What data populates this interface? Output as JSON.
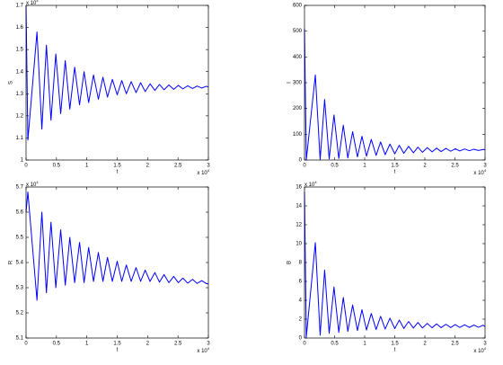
{
  "chart_data": [
    {
      "type": "line",
      "xlabel": "t",
      "ylabel": "S",
      "color": "#0000ff",
      "x_scale_label": {
        "base": "x 10",
        "exp": "4"
      },
      "y_scale_label": {
        "base": "x 10",
        "exp": "4"
      },
      "xlim": [
        0,
        3
      ],
      "xticks": [
        0,
        0.5,
        1,
        1.5,
        2,
        2.5,
        3
      ],
      "ylim": [
        1,
        1.7
      ],
      "yticks": [
        1,
        1.1,
        1.2,
        1.3,
        1.4,
        1.5,
        1.6,
        1.7
      ],
      "x": [
        0,
        0.03,
        0.18,
        0.26,
        0.335,
        0.41,
        0.49,
        0.57,
        0.645,
        0.72,
        0.8,
        0.88,
        0.955,
        1.03,
        1.11,
        1.19,
        1.265,
        1.34,
        1.42,
        1.5,
        1.575,
        1.65,
        1.73,
        1.81,
        1.885,
        1.96,
        2.04,
        2.12,
        2.195,
        2.27,
        2.35,
        2.43,
        2.505,
        2.58,
        2.66,
        2.74,
        2.815,
        2.89,
        2.97,
        3.0
      ],
      "values": [
        1.7,
        1.09,
        1.58,
        1.14,
        1.52,
        1.18,
        1.48,
        1.21,
        1.45,
        1.23,
        1.42,
        1.25,
        1.4,
        1.26,
        1.385,
        1.275,
        1.375,
        1.285,
        1.365,
        1.295,
        1.36,
        1.3,
        1.355,
        1.305,
        1.35,
        1.31,
        1.345,
        1.315,
        1.342,
        1.318,
        1.34,
        1.32,
        1.338,
        1.322,
        1.336,
        1.324,
        1.335,
        1.326,
        1.334,
        1.33
      ]
    },
    {
      "type": "line",
      "xlabel": "t",
      "ylabel": "I",
      "color": "#0000ff",
      "x_scale_label": {
        "base": "x 10",
        "exp": "4"
      },
      "xlim": [
        0,
        3
      ],
      "xticks": [
        0,
        0.5,
        1,
        1.5,
        2,
        2.5,
        3
      ],
      "ylim": [
        0,
        600
      ],
      "yticks": [
        0,
        100,
        200,
        300,
        400,
        500,
        600
      ],
      "x": [
        0,
        0.03,
        0.18,
        0.26,
        0.335,
        0.41,
        0.49,
        0.57,
        0.645,
        0.72,
        0.8,
        0.88,
        0.955,
        1.03,
        1.11,
        1.19,
        1.265,
        1.34,
        1.42,
        1.5,
        1.575,
        1.65,
        1.73,
        1.81,
        1.885,
        1.96,
        2.04,
        2.12,
        2.195,
        2.27,
        2.35,
        2.43,
        2.505,
        2.58,
        2.66,
        2.74,
        2.815,
        2.89,
        2.97,
        3.0
      ],
      "values": [
        510,
        0,
        330,
        2,
        235,
        4,
        175,
        6,
        135,
        8,
        110,
        12,
        92,
        15,
        80,
        18,
        70,
        21,
        62,
        24,
        57,
        26,
        53,
        28,
        50,
        30,
        48,
        32,
        46,
        33,
        45,
        34,
        44,
        35,
        43,
        36,
        42,
        37,
        41,
        40
      ]
    },
    {
      "type": "line",
      "xlabel": "t",
      "ylabel": "R",
      "color": "#0000ff",
      "x_scale_label": {
        "base": "x 10",
        "exp": "4"
      },
      "y_scale_label": {
        "base": "x 10",
        "exp": "4"
      },
      "xlim": [
        0,
        3
      ],
      "xticks": [
        0,
        0.5,
        1,
        1.5,
        2,
        2.5,
        3
      ],
      "ylim": [
        5.1,
        5.7
      ],
      "yticks": [
        5.1,
        5.2,
        5.3,
        5.4,
        5.5,
        5.6,
        5.7
      ],
      "x": [
        0,
        0.03,
        0.18,
        0.26,
        0.335,
        0.41,
        0.49,
        0.57,
        0.645,
        0.72,
        0.8,
        0.88,
        0.955,
        1.03,
        1.11,
        1.19,
        1.265,
        1.34,
        1.42,
        1.5,
        1.575,
        1.65,
        1.73,
        1.81,
        1.885,
        1.96,
        2.04,
        2.12,
        2.195,
        2.27,
        2.35,
        2.43,
        2.505,
        2.58,
        2.66,
        2.74,
        2.815,
        2.89,
        2.97,
        3.0
      ],
      "values": [
        5.6,
        5.68,
        5.25,
        5.6,
        5.28,
        5.56,
        5.3,
        5.53,
        5.31,
        5.5,
        5.32,
        5.48,
        5.32,
        5.46,
        5.325,
        5.44,
        5.325,
        5.42,
        5.325,
        5.405,
        5.325,
        5.39,
        5.325,
        5.38,
        5.325,
        5.37,
        5.325,
        5.36,
        5.322,
        5.352,
        5.32,
        5.345,
        5.32,
        5.338,
        5.318,
        5.333,
        5.317,
        5.328,
        5.316,
        5.315
      ]
    },
    {
      "type": "line",
      "xlabel": "t",
      "ylabel": "B",
      "color": "#0000ff",
      "x_scale_label": {
        "base": "x 10",
        "exp": "4"
      },
      "y_scale_label": {
        "base": "x 10",
        "exp": "4"
      },
      "xlim": [
        0,
        3
      ],
      "xticks": [
        0,
        0.5,
        1,
        1.5,
        2,
        2.5,
        3
      ],
      "ylim": [
        0,
        16
      ],
      "yticks": [
        0,
        2,
        4,
        6,
        8,
        10,
        12,
        14,
        16
      ],
      "x": [
        0,
        0.03,
        0.18,
        0.26,
        0.335,
        0.41,
        0.49,
        0.57,
        0.645,
        0.72,
        0.8,
        0.88,
        0.955,
        1.03,
        1.11,
        1.19,
        1.265,
        1.34,
        1.42,
        1.5,
        1.575,
        1.65,
        1.73,
        1.81,
        1.885,
        1.96,
        2.04,
        2.12,
        2.195,
        2.27,
        2.35,
        2.43,
        2.505,
        2.58,
        2.66,
        2.74,
        2.815,
        2.89,
        2.97,
        3.0
      ],
      "values": [
        15.5,
        0.1,
        10.1,
        0.3,
        7.2,
        0.5,
        5.4,
        0.6,
        4.3,
        0.7,
        3.5,
        0.8,
        3.0,
        0.85,
        2.6,
        0.9,
        2.3,
        0.95,
        2.1,
        1.0,
        1.9,
        1.02,
        1.75,
        1.05,
        1.65,
        1.07,
        1.55,
        1.09,
        1.5,
        1.1,
        1.45,
        1.11,
        1.42,
        1.12,
        1.4,
        1.13,
        1.38,
        1.14,
        1.36,
        1.2
      ]
    }
  ]
}
